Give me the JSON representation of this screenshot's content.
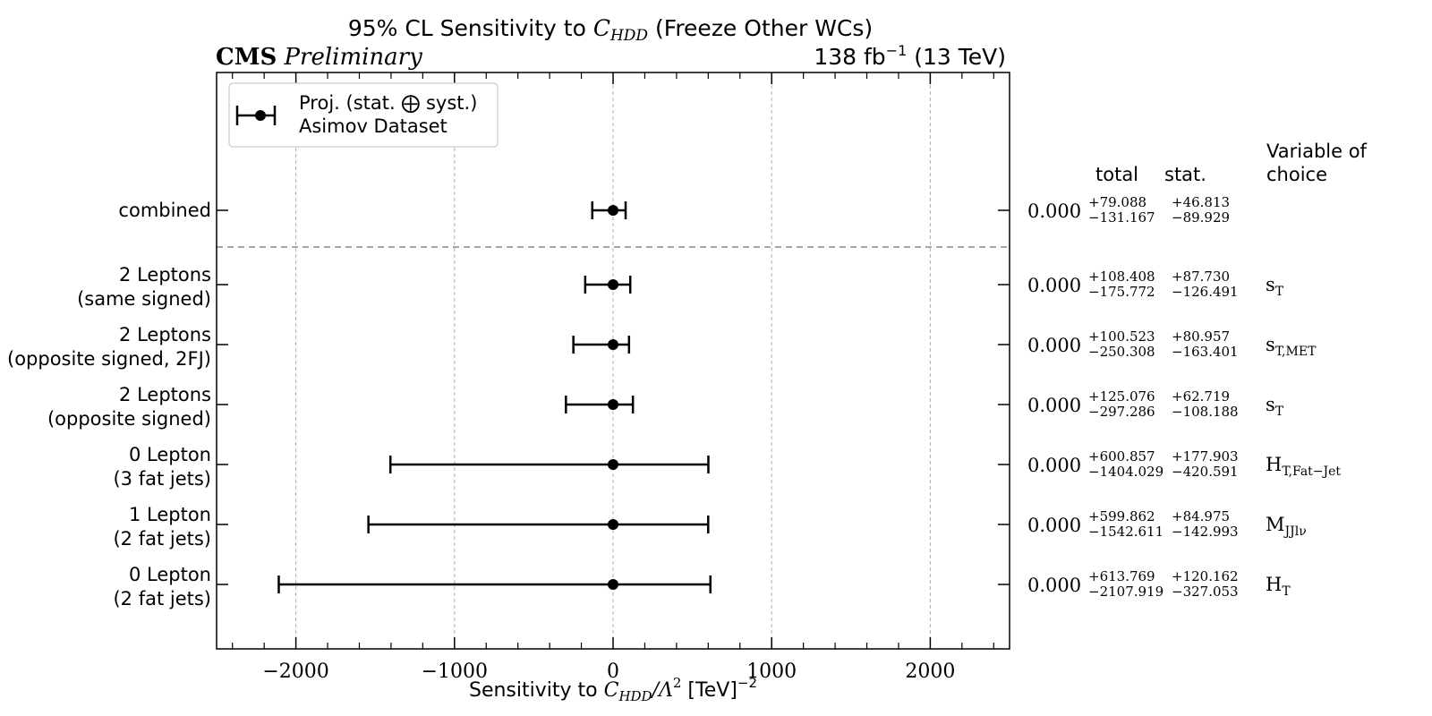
{
  "header": {
    "title_prefix": "95% CL Sensitivity to ",
    "title_var": "C",
    "title_var_sub": "HDD",
    "title_suffix": " (Freeze Other WCs)",
    "cms": "CMS",
    "preliminary": "Preliminary",
    "lumi_prefix": "138 fb",
    "lumi_exp": "−1",
    "lumi_suffix": " (13 TeV)"
  },
  "legend": {
    "line1": "Proj. (stat. ⨁ syst.)",
    "line2": "Asimov Dataset"
  },
  "table_headers": {
    "total": "total",
    "stat": "stat.",
    "variable_line1": "Variable of",
    "variable_line2": "choice"
  },
  "chart_data": {
    "type": "scatter",
    "title": "95% CL Sensitivity to C_HDD (Freeze Other WCs)",
    "xlabel": "Sensitivity to C_HDD/Λ^2 [TeV]^-2",
    "xlim": [
      -2500,
      2500
    ],
    "xticks": [
      -2000,
      -1000,
      0,
      1000,
      2000
    ],
    "xtick_labels": [
      "−2000",
      "−1000",
      "0",
      "1000",
      "2000"
    ],
    "grid": "vertical dashed",
    "legend_position": "top-left",
    "rows": [
      {
        "label1": "combined",
        "label2": "",
        "central": 0.0,
        "central_label": "0.000",
        "total_up": "+79.088",
        "total_down": "−131.167",
        "stat_up": "+46.813",
        "stat_down": "−89.929",
        "err_plus": 79.088,
        "err_minus": 131.167,
        "variable": "",
        "variable_sub": ""
      },
      {
        "label1": "2 Leptons",
        "label2": "(same signed)",
        "central": 0.0,
        "central_label": "0.000",
        "total_up": "+108.408",
        "total_down": "−175.772",
        "stat_up": "+87.730",
        "stat_down": "−126.491",
        "err_plus": 108.408,
        "err_minus": 175.772,
        "variable": "s",
        "variable_sub": "T"
      },
      {
        "label1": "2 Leptons",
        "label2": "(opposite signed, 2FJ)",
        "central": 0.0,
        "central_label": "0.000",
        "total_up": "+100.523",
        "total_down": "−250.308",
        "stat_up": "+80.957",
        "stat_down": "−163.401",
        "err_plus": 100.523,
        "err_minus": 250.308,
        "variable": "s",
        "variable_sub": "T,MET"
      },
      {
        "label1": "2 Leptons",
        "label2": "(opposite signed)",
        "central": 0.0,
        "central_label": "0.000",
        "total_up": "+125.076",
        "total_down": "−297.286",
        "stat_up": "+62.719",
        "stat_down": "−108.188",
        "err_plus": 125.076,
        "err_minus": 297.286,
        "variable": "s",
        "variable_sub": "T"
      },
      {
        "label1": "0 Lepton",
        "label2": "(3 fat jets)",
        "central": 0.0,
        "central_label": "0.000",
        "total_up": "+600.857",
        "total_down": "−1404.029",
        "stat_up": "+177.903",
        "stat_down": "−420.591",
        "err_plus": 600.857,
        "err_minus": 1404.029,
        "variable": "H",
        "variable_sub": "T,Fat−Jet"
      },
      {
        "label1": "1 Lepton",
        "label2": "(2 fat jets)",
        "central": 0.0,
        "central_label": "0.000",
        "total_up": "+599.862",
        "total_down": "−1542.611",
        "stat_up": "+84.975",
        "stat_down": "−142.993",
        "err_plus": 599.862,
        "err_minus": 1542.611,
        "variable": "M",
        "variable_sub": "JJlν"
      },
      {
        "label1": "0 Lepton",
        "label2": "(2 fat jets)",
        "central": 0.0,
        "central_label": "0.000",
        "total_up": "+613.769",
        "total_down": "−2107.919",
        "stat_up": "+120.162",
        "stat_down": "−327.053",
        "err_plus": 613.769,
        "err_minus": 2107.919,
        "variable": "H",
        "variable_sub": "T"
      }
    ]
  }
}
